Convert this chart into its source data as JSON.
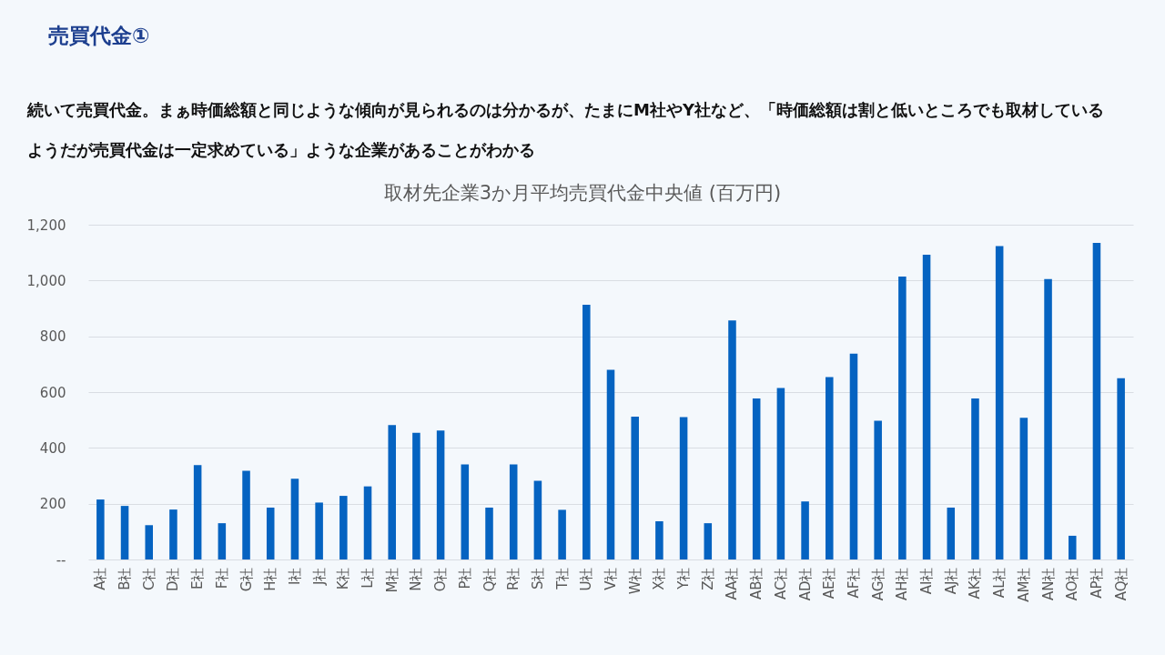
{
  "chart_data": {
    "type": "bar",
    "title": "取材先企業3か月平均売買代金中央値 (百万円)",
    "annotations": [
      "売買代金①",
      "続いて売買代金。まぁ時価総額と同じような傾向が見られるのは分かるが、たまにM社やY社など、「時価総額は割と低いところでも取材している",
      "ようだが売買代金は一定求めている」ような企業があることがわかる"
    ],
    "categories": [
      "A社",
      "B社",
      "C社",
      "D社",
      "E社",
      "F社",
      "G社",
      "H社",
      "I社",
      "J社",
      "K社",
      "L社",
      "M社",
      "N社",
      "O社",
      "P社",
      "Q社",
      "R社",
      "S社",
      "T社",
      "U社",
      "V社",
      "W社",
      "X社",
      "Y社",
      "Z社",
      "AA社",
      "AB社",
      "AC社",
      "AD社",
      "AE社",
      "AF社",
      "AG社",
      "AH社",
      "AI社",
      "AJ社",
      "AK社",
      "AL社",
      "AM社",
      "AN社",
      "AO社",
      "AP社",
      "AQ社"
    ],
    "values": [
      215,
      192,
      123,
      179,
      338,
      130,
      318,
      186,
      289,
      204,
      228,
      262,
      482,
      454,
      462,
      341,
      186,
      341,
      282,
      178,
      913,
      680,
      512,
      137,
      510,
      130,
      857,
      577,
      615,
      208,
      654,
      738,
      497,
      1014,
      1092,
      186,
      577,
      1123,
      508,
      1005,
      85,
      1135,
      650
    ],
    "color": "#0563c1",
    "ylim": [
      0,
      1200
    ],
    "yticks": [
      {
        "value": 0,
        "label": "--"
      },
      200,
      400,
      600,
      800,
      {
        "value": 1000,
        "label": "1,000"
      },
      {
        "value": 1200,
        "label": "1,200"
      }
    ],
    "grid": "y"
  }
}
